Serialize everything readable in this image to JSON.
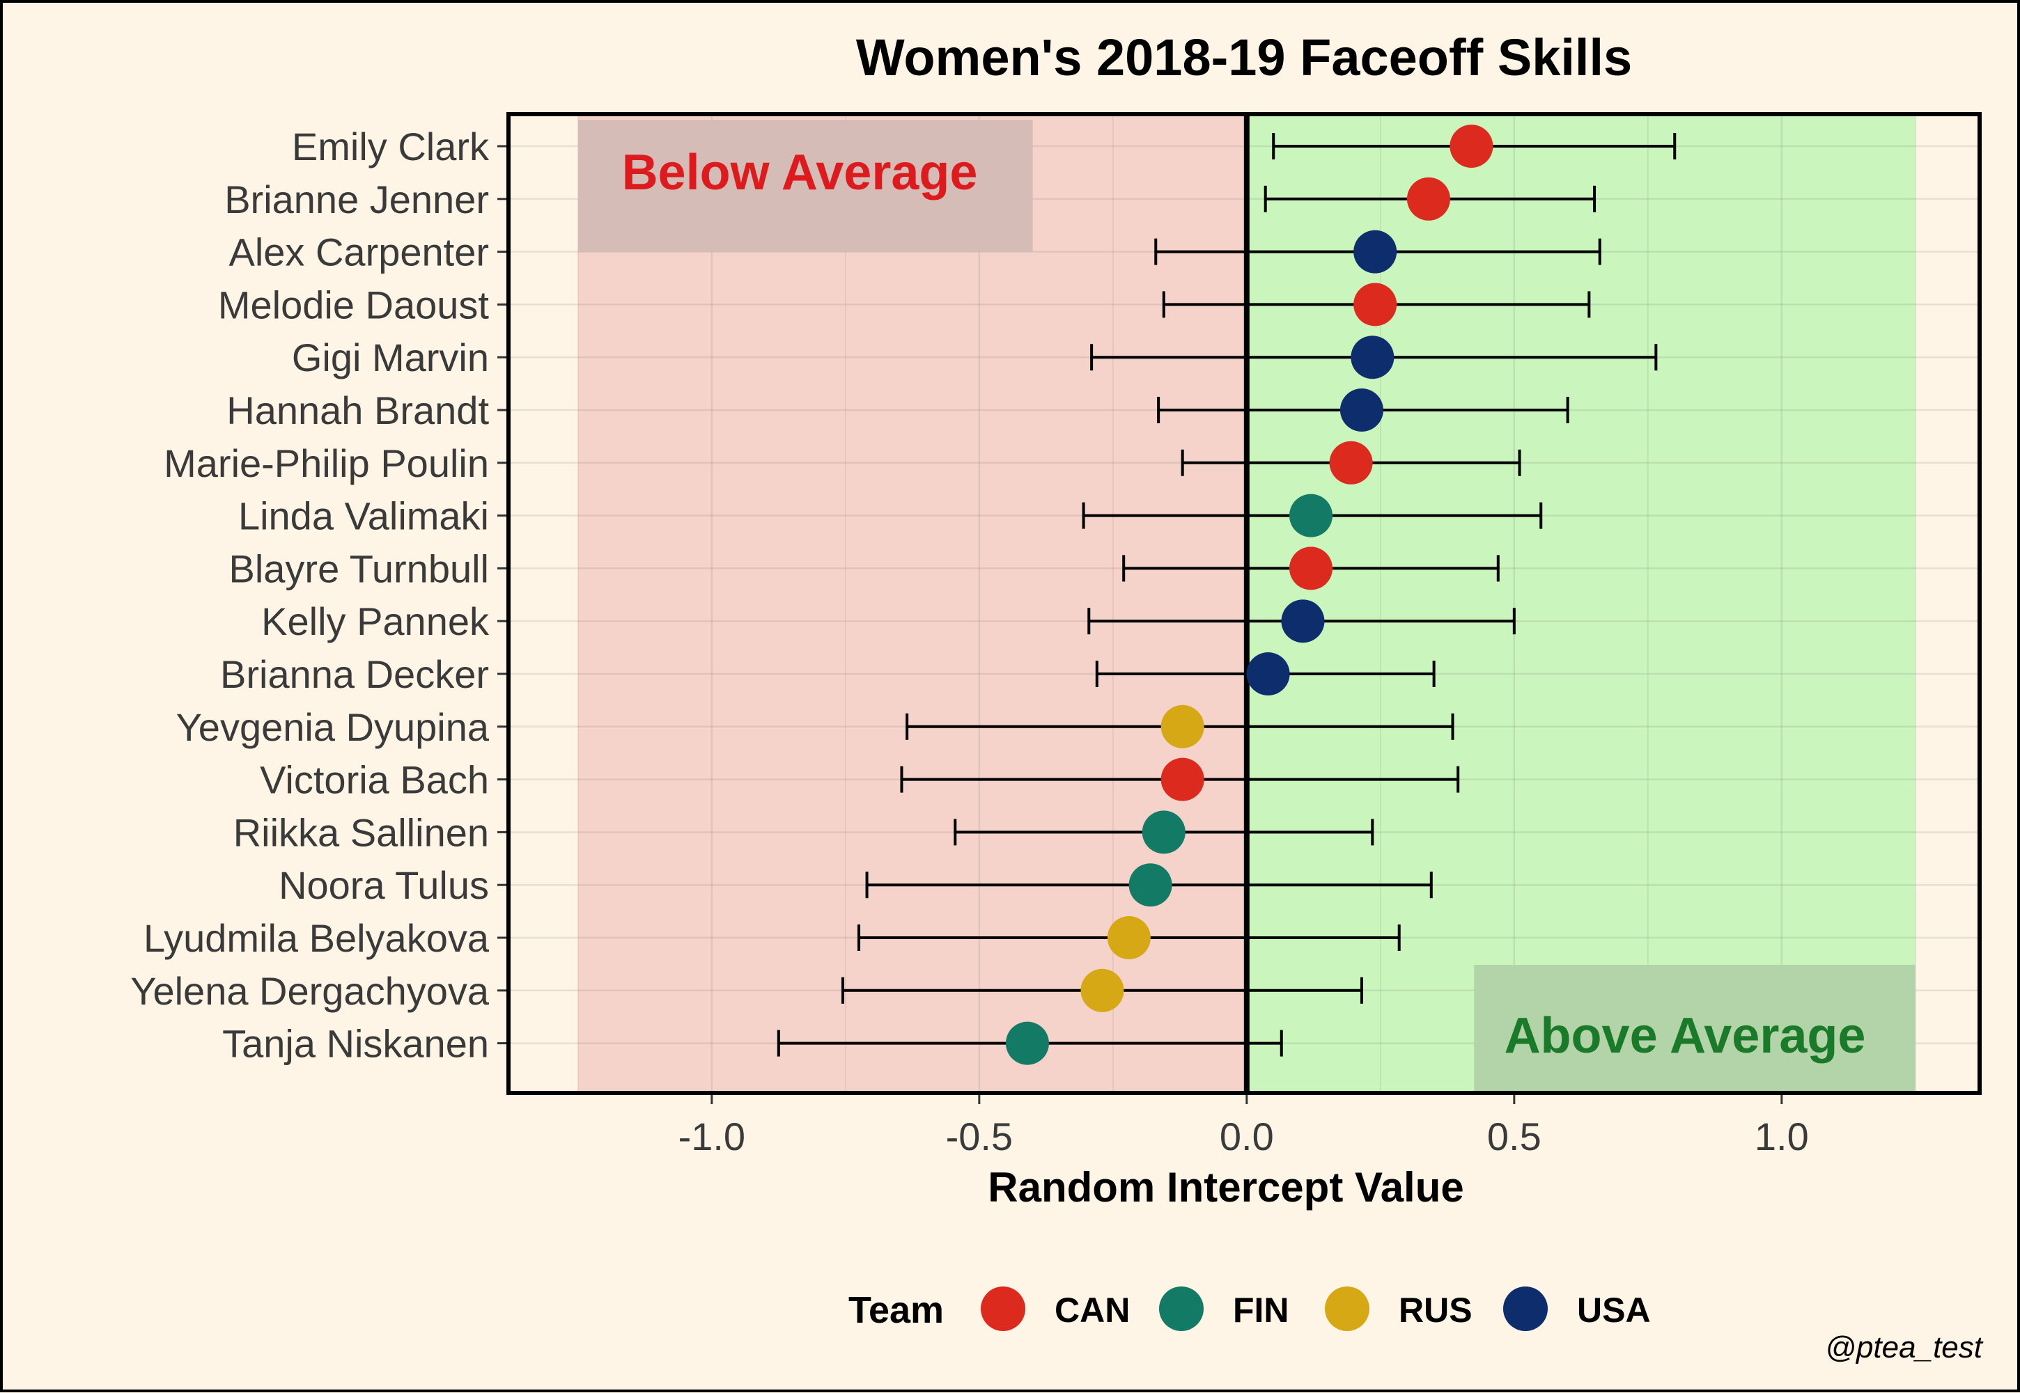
{
  "chart_data": {
    "type": "scatter",
    "title": "Women's 2018-19 Faceoff Skills",
    "xlabel": "Random Intercept Value",
    "ylabel": "",
    "xlim": [
      -1.38,
      1.37
    ],
    "xticks": [
      -1.0,
      -0.5,
      0.0,
      0.5,
      1.0
    ],
    "xtick_labels": [
      "-1.0",
      "-0.5",
      "0.0",
      "0.5",
      "1.0"
    ],
    "grid": true,
    "reference_line_x": 0.0,
    "regions": [
      {
        "name": "below",
        "label": "Below Average",
        "x": [
          -1.25,
          0.0
        ],
        "color": "#f5d2ca",
        "label_color": "#dd1a1e",
        "label_bg": "#d6bcb6",
        "label_position": "top-left"
      },
      {
        "name": "above",
        "label": "Above Average",
        "x": [
          0.0,
          1.25
        ],
        "color": "#caf5bc",
        "label_color": "#1a7a2a",
        "label_bg": "#b3d4a8",
        "label_position": "bottom-right"
      }
    ],
    "players": [
      {
        "name": "Emily Clark",
        "team": "CAN",
        "value": 0.42,
        "lower": 0.05,
        "upper": 0.8
      },
      {
        "name": "Brianne Jenner",
        "team": "CAN",
        "value": 0.34,
        "lower": 0.035,
        "upper": 0.65
      },
      {
        "name": "Alex Carpenter",
        "team": "USA",
        "value": 0.24,
        "lower": -0.17,
        "upper": 0.66
      },
      {
        "name": "Melodie Daoust",
        "team": "CAN",
        "value": 0.24,
        "lower": -0.155,
        "upper": 0.64
      },
      {
        "name": "Gigi Marvin",
        "team": "USA",
        "value": 0.235,
        "lower": -0.29,
        "upper": 0.765
      },
      {
        "name": "Hannah Brandt",
        "team": "USA",
        "value": 0.215,
        "lower": -0.165,
        "upper": 0.6
      },
      {
        "name": "Marie-Philip Poulin",
        "team": "CAN",
        "value": 0.195,
        "lower": -0.12,
        "upper": 0.51
      },
      {
        "name": "Linda Valimaki",
        "team": "FIN",
        "value": 0.12,
        "lower": -0.305,
        "upper": 0.55
      },
      {
        "name": "Blayre Turnbull",
        "team": "CAN",
        "value": 0.12,
        "lower": -0.23,
        "upper": 0.47
      },
      {
        "name": "Kelly Pannek",
        "team": "USA",
        "value": 0.105,
        "lower": -0.295,
        "upper": 0.5
      },
      {
        "name": "Brianna Decker",
        "team": "USA",
        "value": 0.04,
        "lower": -0.28,
        "upper": 0.35
      },
      {
        "name": "Yevgenia Dyupina",
        "team": "RUS",
        "value": -0.12,
        "lower": -0.635,
        "upper": 0.385
      },
      {
        "name": "Victoria Bach",
        "team": "CAN",
        "value": -0.12,
        "lower": -0.645,
        "upper": 0.395
      },
      {
        "name": "Riikka Sallinen",
        "team": "FIN",
        "value": -0.155,
        "lower": -0.545,
        "upper": 0.235
      },
      {
        "name": "Noora Tulus",
        "team": "FIN",
        "value": -0.18,
        "lower": -0.71,
        "upper": 0.345
      },
      {
        "name": "Lyudmila Belyakova",
        "team": "RUS",
        "value": -0.22,
        "lower": -0.725,
        "upper": 0.285
      },
      {
        "name": "Yelena Dergachyova",
        "team": "RUS",
        "value": -0.27,
        "lower": -0.755,
        "upper": 0.215
      },
      {
        "name": "Tanja Niskanen",
        "team": "FIN",
        "value": -0.41,
        "lower": -0.875,
        "upper": 0.065
      }
    ],
    "legend": {
      "title": "Team",
      "placement": "bottom",
      "entries": [
        {
          "team": "CAN",
          "color": "#dc2a1e"
        },
        {
          "team": "FIN",
          "color": "#137a65"
        },
        {
          "team": "RUS",
          "color": "#d6a816"
        },
        {
          "team": "USA",
          "color": "#0d2d6c"
        }
      ]
    },
    "caption": "@ptea_test"
  }
}
